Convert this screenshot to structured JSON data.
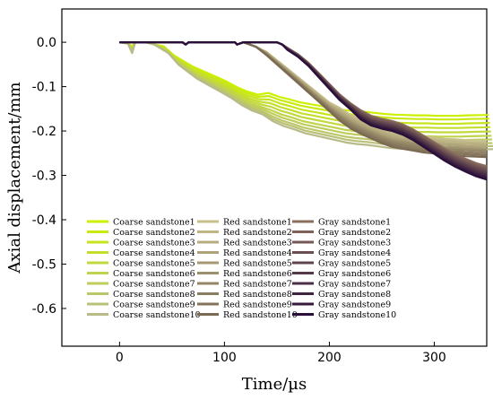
{
  "chart_data": {
    "type": "line",
    "xlabel": "Time/µs",
    "ylabel": "Axial displacement/mm",
    "xlim": [
      -55,
      350
    ],
    "ylim": [
      -0.685,
      0.075
    ],
    "x_ticks": [
      0,
      100,
      200,
      300
    ],
    "x_tick_labels": [
      "0",
      "100",
      "200",
      "300"
    ],
    "y_ticks": [
      0.0,
      -0.1,
      -0.2,
      -0.3,
      -0.4,
      -0.5,
      -0.6
    ],
    "y_tick_labels": [
      "0.0",
      "-0.1",
      "-0.2",
      "-0.3",
      "-0.4",
      "-0.5",
      "-0.6"
    ],
    "grid": false,
    "legend_position": "lower-left",
    "groups": [
      {
        "base_name": "Coarse sandstone",
        "color_start": "#ccf000",
        "color_end": "#b8bb88",
        "base_points": [
          [
            0,
            0
          ],
          [
            8,
            -0.003
          ],
          [
            12,
            -0.02
          ],
          [
            15,
            0
          ],
          [
            25,
            0
          ],
          [
            33,
            -0.005
          ],
          [
            40,
            -0.02
          ],
          [
            50,
            -0.045
          ],
          [
            60,
            -0.062
          ],
          [
            68,
            -0.075
          ],
          [
            80,
            -0.09
          ],
          [
            90,
            -0.102
          ],
          [
            100,
            -0.115
          ],
          [
            110,
            -0.13
          ],
          [
            120,
            -0.142
          ],
          [
            130,
            -0.15
          ],
          [
            140,
            -0.16
          ],
          [
            150,
            -0.17
          ],
          [
            160,
            -0.177
          ],
          [
            170,
            -0.185
          ],
          [
            180,
            -0.19
          ],
          [
            190,
            -0.195
          ],
          [
            200,
            -0.2
          ],
          [
            210,
            -0.205
          ],
          [
            220,
            -0.208
          ],
          [
            230,
            -0.21
          ],
          [
            240,
            -0.213
          ],
          [
            250,
            -0.216
          ],
          [
            260,
            -0.218
          ],
          [
            270,
            -0.219
          ],
          [
            280,
            -0.22
          ],
          [
            290,
            -0.22
          ],
          [
            300,
            -0.221
          ],
          [
            310,
            -0.221
          ],
          [
            320,
            -0.221
          ],
          [
            330,
            -0.22
          ],
          [
            350,
            -0.219
          ]
        ],
        "offsets": [
          0.04,
          0.034,
          0.027,
          0.02,
          0.013,
          0.006,
          0.0,
          -0.006,
          -0.011,
          -0.016
        ],
        "onset_shift": [
          2,
          2.5,
          3,
          3.5,
          4,
          4.5,
          5,
          5.5,
          6,
          6.5
        ],
        "series_names": [
          "Coarse sandstone1",
          "Coarse sandstone2",
          "Coarse sandstone3",
          "Coarse sandstone4",
          "Coarse sandstone5",
          "Coarse sandstone6",
          "Coarse sandstone7",
          "Coarse sandstone8",
          "Coarse sandstone9",
          "Coarse sandstone10"
        ]
      },
      {
        "base_name": "Red sandstone",
        "color_start": "#c8c08c",
        "color_end": "#7a6a54",
        "base_points": [
          [
            0,
            0
          ],
          [
            10,
            0
          ],
          [
            30,
            0
          ],
          [
            50,
            0
          ],
          [
            60,
            0
          ],
          [
            63,
            -0.005
          ],
          [
            66,
            0
          ],
          [
            80,
            0
          ],
          [
            110,
            0
          ],
          [
            112,
            -0.005
          ],
          [
            118,
            0
          ],
          [
            130,
            -0.01
          ],
          [
            140,
            -0.025
          ],
          [
            150,
            -0.045
          ],
          [
            160,
            -0.065
          ],
          [
            170,
            -0.085
          ],
          [
            180,
            -0.105
          ],
          [
            190,
            -0.125
          ],
          [
            200,
            -0.145
          ],
          [
            210,
            -0.162
          ],
          [
            220,
            -0.178
          ],
          [
            230,
            -0.19
          ],
          [
            240,
            -0.2
          ],
          [
            250,
            -0.21
          ],
          [
            260,
            -0.218
          ],
          [
            270,
            -0.222
          ],
          [
            280,
            -0.226
          ],
          [
            290,
            -0.23
          ],
          [
            300,
            -0.232
          ],
          [
            310,
            -0.235
          ],
          [
            320,
            -0.236
          ],
          [
            330,
            -0.238
          ],
          [
            350,
            -0.24
          ]
        ],
        "offsets": [
          0.012,
          0.009,
          0.006,
          0.003,
          0.0,
          -0.002,
          -0.004,
          -0.007,
          -0.01,
          -0.013
        ],
        "onset_shift": [
          0,
          0,
          0,
          0,
          0,
          0,
          0,
          0,
          0,
          0
        ],
        "series_names": [
          "Red sandstone1",
          "Red sandstone2",
          "Red sandstone3",
          "Red sandstone4",
          "Red sandstone5",
          "Red sandstone6",
          "Red sandstone7",
          "Red sandstone8",
          "Red sandstone9",
          "Red sandstone10"
        ]
      },
      {
        "base_name": "Gray sandstone",
        "color_start": "#8a6e5e",
        "color_end": "#2a0f3a",
        "base_points": [
          [
            0,
            0
          ],
          [
            10,
            0
          ],
          [
            30,
            0
          ],
          [
            60,
            0
          ],
          [
            63,
            -0.005
          ],
          [
            66,
            0
          ],
          [
            110,
            0
          ],
          [
            112,
            -0.005
          ],
          [
            118,
            0
          ],
          [
            150,
            0
          ],
          [
            155,
            -0.005
          ],
          [
            160,
            -0.015
          ],
          [
            170,
            -0.03
          ],
          [
            180,
            -0.05
          ],
          [
            190,
            -0.075
          ],
          [
            200,
            -0.1
          ],
          [
            210,
            -0.125
          ],
          [
            220,
            -0.145
          ],
          [
            230,
            -0.165
          ],
          [
            240,
            -0.178
          ],
          [
            250,
            -0.185
          ],
          [
            260,
            -0.19
          ],
          [
            270,
            -0.198
          ],
          [
            280,
            -0.21
          ],
          [
            290,
            -0.225
          ],
          [
            300,
            -0.24
          ],
          [
            310,
            -0.255
          ],
          [
            320,
            -0.268
          ],
          [
            330,
            -0.279
          ],
          [
            340,
            -0.289
          ],
          [
            350,
            -0.296
          ]
        ],
        "offsets": [
          0.01,
          0.008,
          0.006,
          0.004,
          0.002,
          0.0,
          -0.002,
          -0.004,
          -0.006,
          -0.008
        ],
        "onset_shift": [
          0,
          0,
          0,
          0,
          0,
          0,
          0,
          0,
          0,
          0
        ],
        "series_names": [
          "Gray sandstone1",
          "Gray sandstone2",
          "Gray sandstone3",
          "Gray sandstone4",
          "Gray sandstone5",
          "Gray sandstone6",
          "Gray sandstone7",
          "Gray sandstone8",
          "Gray sandstone9",
          "Gray sandstone10"
        ]
      }
    ]
  }
}
